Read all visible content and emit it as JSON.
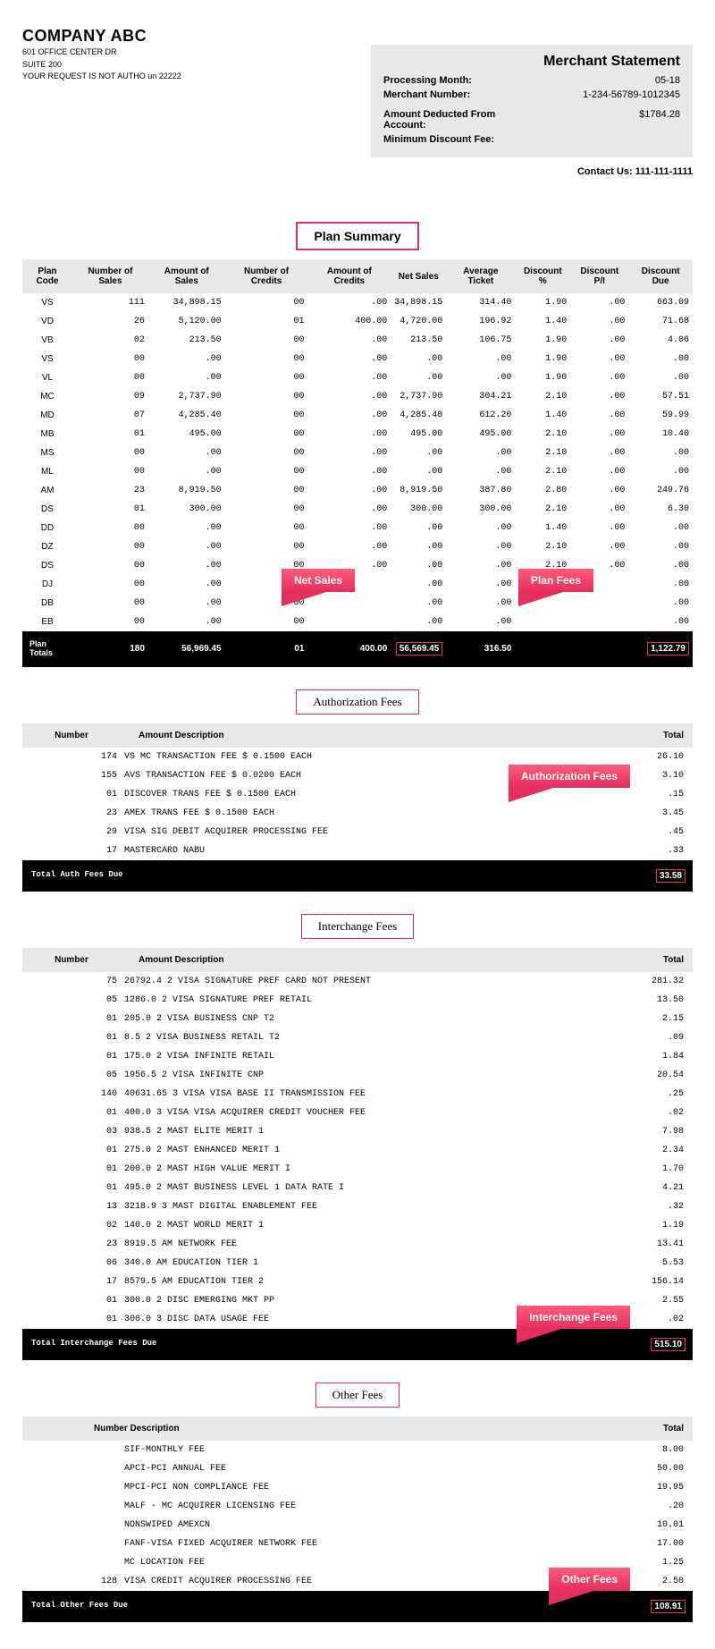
{
  "company": {
    "name": "COMPANY ABC",
    "addr1": "601 OFFICE CENTER DR",
    "addr2": "SUITE 200",
    "addr3": "YOUR REQUEST IS NOT AUTHO un 22222"
  },
  "statement": {
    "title": "Merchant Statement",
    "processing_month_label": "Processing Month:",
    "processing_month": "05-18",
    "merchant_number_label": "Merchant Number:",
    "merchant_number": "1-234-56789-1012345",
    "amount_deducted_label": "Amount Deducted From Account:",
    "amount_deducted": "$1784.28",
    "min_discount_label": "Minimum Discount Fee:",
    "min_discount": "",
    "contact_label": "Contact Us:",
    "contact": "111-111-1111"
  },
  "sections": {
    "plan_summary": "Plan Summary",
    "auth_fees": "Authorization Fees",
    "interchange_fees": "Interchange Fees",
    "other_fees": "Other Fees"
  },
  "callouts": {
    "net_sales": "Net Sales",
    "plan_fees": "Plan Fees",
    "auth_fees": "Authorization Fees",
    "interchange_fees": "Interchange Fees",
    "other_fees": "Other Fees"
  },
  "plan": {
    "headers": [
      "Plan Code",
      "Number of Sales",
      "Amount of Sales",
      "Number of Credits",
      "Amount of Credits",
      "Net Sales",
      "Average Ticket",
      "Discount %",
      "Discount P/I",
      "Discount Due"
    ],
    "rows": [
      [
        "VS",
        "111",
        "34,898.15",
        "00",
        ".00",
        "34,898.15",
        "314.40",
        "1.90",
        ".00",
        "663.09"
      ],
      [
        "VD",
        "26",
        "5,120.00",
        "01",
        "400.00",
        "4,720.00",
        "196.92",
        "1.40",
        ".00",
        "71.68"
      ],
      [
        "VB",
        "02",
        "213.50",
        "00",
        ".00",
        "213.50",
        "106.75",
        "1.90",
        ".00",
        "4.06"
      ],
      [
        "VS",
        "00",
        ".00",
        "00",
        ".00",
        ".00",
        ".00",
        "1.90",
        ".00",
        ".00"
      ],
      [
        "VL",
        "00",
        ".00",
        "00",
        ".00",
        ".00",
        ".00",
        "1.90",
        ".00",
        ".00"
      ],
      [
        "MC",
        "09",
        "2,737.90",
        "00",
        ".00",
        "2,737.90",
        "304.21",
        "2.10",
        ".00",
        "57.51"
      ],
      [
        "MD",
        "07",
        "4,285.40",
        "00",
        ".00",
        "4,285.40",
        "612.20",
        "1.40",
        ".00",
        "59.99"
      ],
      [
        "MB",
        "01",
        "495.00",
        "00",
        ".00",
        "495.00",
        "495.00",
        "2.10",
        ".00",
        "10.40"
      ],
      [
        "MS",
        "00",
        ".00",
        "00",
        ".00",
        ".00",
        ".00",
        "2.10",
        ".00",
        ".00"
      ],
      [
        "ML",
        "00",
        ".00",
        "00",
        ".00",
        ".00",
        ".00",
        "2.10",
        ".00",
        ".00"
      ],
      [
        "AM",
        "23",
        "8,919.50",
        "00",
        ".00",
        "8,919.50",
        "387.80",
        "2.80",
        ".00",
        "249.76"
      ],
      [
        "DS",
        "01",
        "300.00",
        "00",
        ".00",
        "300.00",
        "300.00",
        "2.10",
        ".00",
        "6.30"
      ],
      [
        "DD",
        "00",
        ".00",
        "00",
        ".00",
        ".00",
        ".00",
        "1.40",
        ".00",
        ".00"
      ],
      [
        "DZ",
        "00",
        ".00",
        "00",
        ".00",
        ".00",
        ".00",
        "2.10",
        ".00",
        ".00"
      ],
      [
        "DS",
        "00",
        ".00",
        "00",
        ".00",
        ".00",
        ".00",
        "2.10",
        ".00",
        ".00"
      ],
      [
        "DJ",
        "00",
        ".00",
        "00",
        "",
        ".00",
        ".00",
        "",
        "",
        ".00"
      ],
      [
        "DB",
        "00",
        ".00",
        "00",
        "",
        ".00",
        ".00",
        "",
        "",
        ".00"
      ],
      [
        "EB",
        "00",
        ".00",
        "00",
        "",
        ".00",
        ".00",
        "",
        "",
        ".00"
      ]
    ],
    "totals_label": "Plan Totals",
    "totals": [
      "180",
      "56,969.45",
      "01",
      "400.00",
      "56,569.45",
      "316.50",
      "",
      "",
      "1,122.79"
    ]
  },
  "auth": {
    "headers": [
      "Number",
      "Amount Description",
      "Total"
    ],
    "rows": [
      [
        "174",
        "VS MC TRANSACTION FEE $ 0.1500 EACH",
        "26.10"
      ],
      [
        "155",
        "AVS TRANSACTION FEE $ 0.0200 EACH",
        "3.10"
      ],
      [
        "01",
        "DISCOVER TRANS FEE $ 0.1500 EACH",
        ".15"
      ],
      [
        "23",
        "AMEX TRANS FEE $ 0.1500 EACH",
        "3.45"
      ],
      [
        "29",
        "VISA SIG DEBIT ACQUIRER PROCESSING FEE",
        ".45"
      ],
      [
        "17",
        "MASTERCARD NABU",
        ".33"
      ]
    ],
    "totals_label": "Total Auth Fees Due",
    "total": "33.58"
  },
  "interchange": {
    "headers": [
      "Number",
      "Amount Description",
      "Total"
    ],
    "rows": [
      [
        "75",
        "26792.4 2 VISA SIGNATURE PREF CARD NOT PRESENT",
        "281.32"
      ],
      [
        "05",
        "1286.0 2 VISA SIGNATURE PREF RETAIL",
        "13.50"
      ],
      [
        "01",
        "205.0 2 VISA BUSINESS CNP T2",
        "2.15"
      ],
      [
        "01",
        "8.5 2 VISA BUSINESS RETAIL T2",
        ".09"
      ],
      [
        "01",
        "175.0 2 VISA INFINITE RETAIL",
        "1.84"
      ],
      [
        "05",
        "1956.5 2 VISA INFINITE CNP",
        "20.54"
      ],
      [
        "140",
        "40631.65 3 VISA VISA BASE II TRANSMISSION FEE",
        ".25"
      ],
      [
        "01",
        "400.0 3 VISA VISA ACQUIRER CREDIT VOUCHER FEE",
        ".02"
      ],
      [
        "03",
        "938.5 2 MAST ELITE MERIT 1",
        "7.98"
      ],
      [
        "01",
        "275.0 2 MAST ENHANCED MERIT 1",
        "2.34"
      ],
      [
        "01",
        "200.0 2 MAST HIGH VALUE MERIT I",
        "1.70"
      ],
      [
        "01",
        "495.0 2 MAST BUSINESS LEVEL 1 DATA RATE I",
        "4.21"
      ],
      [
        "13",
        "3218.9 3 MAST DIGITAL ENABLEMENT FEE",
        ".32"
      ],
      [
        "02",
        "140.0 2 MAST WORLD MERIT 1",
        "1.19"
      ],
      [
        "23",
        "8919.5 AM NETWORK FEE",
        "13.41"
      ],
      [
        "06",
        "340.0 AM EDUCATION TIER 1",
        "5.53"
      ],
      [
        "17",
        "8579.5 AM EDUCATION TIER 2",
        "156.14"
      ],
      [
        "01",
        "300.0 2 DISC EMERGING MKT PP",
        "2.55"
      ],
      [
        "01",
        "300.0 3 DISC DATA USAGE FEE",
        ".02"
      ]
    ],
    "totals_label": "Total Interchange Fees Due",
    "total": "515.10"
  },
  "other": {
    "headers": [
      "Number Description",
      "Total"
    ],
    "rows": [
      [
        "",
        "SIF-MONTHLY FEE",
        "8.00"
      ],
      [
        "",
        "APCI-PCI ANNUAL FEE",
        "50.00"
      ],
      [
        "",
        "MPCI-PCI NON COMPLIANCE FEE",
        "19.95"
      ],
      [
        "",
        "MALF - MC ACQUIRER LICENSING FEE",
        ".20"
      ],
      [
        "",
        "NONSWIPED AMEXCN",
        "10.01"
      ],
      [
        "",
        "FANF-VISA FIXED ACQUIRER NETWORK FEE",
        "17.00"
      ],
      [
        "",
        "MC LOCATION FEE",
        "1.25"
      ],
      [
        "128",
        "VISA CREDIT ACQUIRER PROCESSING FEE",
        "2.50"
      ]
    ],
    "totals_label": "Total Other Fees Due",
    "total": "108.91"
  },
  "colors": {
    "accent": "#e62e5c",
    "callout_top": "#ff5a7a",
    "header_bg": "#e8e8e8",
    "black": "#000000",
    "white": "#ffffff"
  }
}
